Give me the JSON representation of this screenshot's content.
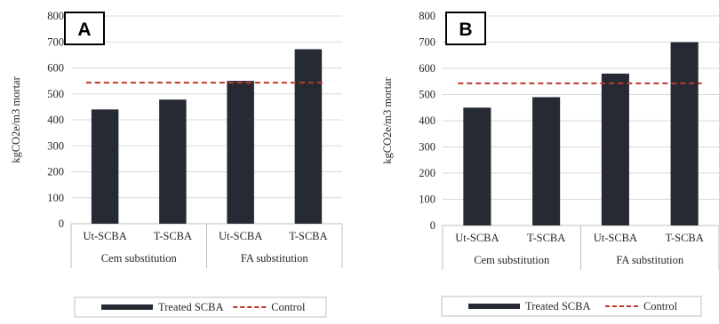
{
  "colors": {
    "bar": "#262b33",
    "control_line": "#c0392b",
    "grid": "#d9d9d9",
    "axis": "#bfbfbf"
  },
  "legend": {
    "bar_label": "Treated SCBA",
    "line_label": "Control"
  },
  "chart_data": [
    {
      "type": "bar",
      "panel": "A",
      "ylabel": "kgCO2e/m3 mortar",
      "ylim": [
        0,
        800
      ],
      "yticks": [
        0,
        100,
        200,
        300,
        400,
        500,
        600,
        700,
        800
      ],
      "categories": [
        "Ut-SCBA",
        "T-SCBA",
        "Ut-SCBA",
        "T-SCBA"
      ],
      "groups": [
        {
          "label": "Cem substitution",
          "span": [
            0,
            1
          ]
        },
        {
          "label": "FA substitution",
          "span": [
            2,
            3
          ]
        }
      ],
      "series": [
        {
          "name": "Treated SCBA",
          "values": [
            440,
            478,
            550,
            672
          ]
        }
      ],
      "control_value": 543,
      "grid": true,
      "legend_position": "bottom"
    },
    {
      "type": "bar",
      "panel": "B",
      "ylabel": "kgCO2e/m3 mortar",
      "ylim": [
        0,
        800
      ],
      "yticks": [
        0,
        100,
        200,
        300,
        400,
        500,
        600,
        700,
        800
      ],
      "categories": [
        "Ut-SCBA",
        "T-SCBA",
        "Ut-SCBA",
        "T-SCBA"
      ],
      "groups": [
        {
          "label": "Cem substitution",
          "span": [
            0,
            1
          ]
        },
        {
          "label": "FA substitution",
          "span": [
            2,
            3
          ]
        }
      ],
      "series": [
        {
          "name": "Treated SCBA",
          "values": [
            450,
            490,
            580,
            700
          ]
        }
      ],
      "control_value": 543,
      "grid": true,
      "legend_position": "bottom"
    }
  ]
}
